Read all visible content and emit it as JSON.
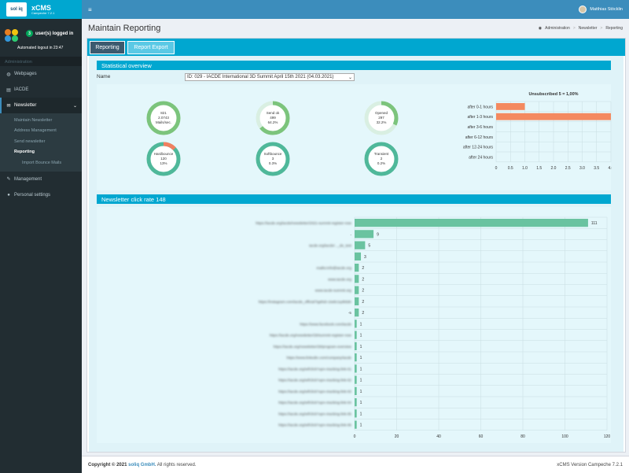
{
  "app": {
    "logo_text": "xCMS",
    "logo_sub": "Campeche 7.2.1",
    "logo_mark": "sol iq"
  },
  "user_panel": {
    "count": "3",
    "logged_in_label": "user(s) logged in",
    "logout_text": "Automated logout in 23:47"
  },
  "sidebar": {
    "section": "Administration",
    "items": [
      {
        "label": "Webpages",
        "icon": "globe-icon"
      },
      {
        "label": "IACDE",
        "icon": "book-icon"
      },
      {
        "label": "Newsletter",
        "icon": "envelope-icon"
      },
      {
        "label": "Management",
        "icon": "wrench-icon"
      },
      {
        "label": "Personal settings",
        "icon": "user-icon"
      }
    ],
    "newsletter_sub": [
      "Maintain Newsletter",
      "Address Management",
      "Send newsletter",
      "Reporting",
      "Import Bounce Mails"
    ]
  },
  "topbar": {
    "user_name": "Matthias Stöcklin"
  },
  "header": {
    "title": "Maintain Reporting",
    "breadcrumb": [
      "Administration",
      "Newsletter",
      "Reporting"
    ]
  },
  "tabs": [
    "Reporting",
    "Report Export"
  ],
  "stats": {
    "section_title": "Statistical overview",
    "name_label": "Name",
    "selected_newsletter": "ID: 029 - IACDE International 3D Summit April 15th 2021 (04.03.2021)",
    "donuts": [
      {
        "lines": [
          "821",
          "2.0743",
          "Mails/sec."
        ],
        "fraction": 1.0,
        "accent": "#7cc47c"
      },
      {
        "lines": [
          "Send ok",
          "499",
          "64.2%"
        ],
        "fraction": 0.642,
        "accent": "#7cc47c"
      },
      {
        "lines": [
          "Opened",
          "297",
          "32.2%"
        ],
        "fraction": 0.322,
        "accent": "#7cc47c"
      },
      {
        "lines": [
          "Hardbounce",
          "120",
          "13%"
        ],
        "fraction": 0.13,
        "accent": "#f08060"
      },
      {
        "lines": [
          "Softbounce",
          "3",
          "0.3%"
        ],
        "fraction": 1.0,
        "accent": "#4fb89a"
      },
      {
        "lines": [
          "Transient",
          "2",
          "0.2%"
        ],
        "fraction": 1.0,
        "accent": "#4fb89a"
      }
    ]
  },
  "colors": {
    "accent_cyan": "#00a7d0",
    "bar_orange": "#f4895f",
    "bar_green": "#6ac3a0",
    "donut_track": "#d9efe2"
  },
  "chart_data": [
    {
      "type": "bar",
      "orientation": "horizontal",
      "title": "Unsubscribed 5 = 1,00%",
      "categories": [
        "after 0-1 hours",
        "after 1-3 hours",
        "after 3-6 hours",
        "after 6-12 hours",
        "after 12-24 hours",
        "after 24 hours"
      ],
      "values": [
        1,
        4,
        0,
        0,
        0,
        0
      ],
      "xlim": [
        0,
        4
      ],
      "xticks": [
        "0",
        "0.5",
        "1.0",
        "1.5",
        "2.0",
        "2.5",
        "3.0",
        "3.5",
        "4.0"
      ],
      "grid": true
    },
    {
      "type": "bar",
      "orientation": "horizontal",
      "title": "Newsletter click rate 148",
      "categories": [
        "https://iacde.org/iacde/newsletter/2021-summit-register-now",
        "-",
        "iacde.org/iacde/..._de_test",
        "",
        "mailto:info@iacde.org",
        "www.iacde.org",
        "www.iacde-summit.org",
        "https://instagram.com/iacde_official?igshid=1iw6c1q4k6dn",
        "-5",
        "https://www.facebook.com/iacde",
        "https://iacde.org/newsletter/29/summit-register-now",
        "https://iacde.org/newsletter/29/program-overview",
        "https://www.linkedin.com/company/iacde",
        "https://iacde.org/wf/click?upn=tracking-link-01",
        "https://iacde.org/wf/click?upn=tracking-link-02",
        "https://iacde.org/wf/click?upn=tracking-link-03",
        "https://iacde.org/wf/click?upn=tracking-link-04",
        "https://iacde.org/wf/click?upn=tracking-link-05",
        "https://iacde.org/wf/click?upn=tracking-link-06"
      ],
      "values": [
        111,
        9,
        5,
        3,
        2,
        2,
        2,
        2,
        2,
        1,
        1,
        1,
        1,
        1,
        1,
        1,
        1,
        1,
        1
      ],
      "xlim": [
        0,
        120
      ],
      "xticks": [
        "0",
        "20",
        "40",
        "60",
        "80",
        "100",
        "120"
      ],
      "grid": true
    }
  ],
  "footer": {
    "copyright_prefix": "Copyright © 2021",
    "company": "soliq GmbH.",
    "rights": "All rights reserved.",
    "version": "xCMS Version Campeche 7.2.1"
  }
}
